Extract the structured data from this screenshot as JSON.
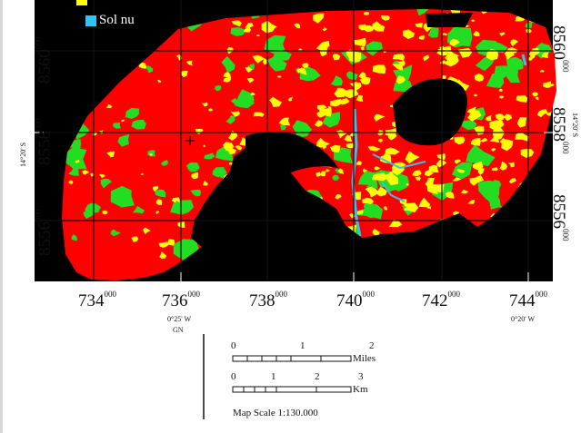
{
  "legend": {
    "items": [
      {
        "label": "Sol nu",
        "color": "#33c3f0"
      }
    ],
    "partial_swatch_color": "#ffff00"
  },
  "classes": {
    "vegetation_dense_color": "#ff0000",
    "vegetation_sparse_color": "#22dd22",
    "vegetation_other_color": "#ffff00",
    "bare_soil_color": "#33c3f0",
    "background_color": "#000000"
  },
  "left_labels": [
    {
      "main": "8560",
      "sup": "000"
    },
    {
      "main": "8558",
      "sup": "000"
    },
    {
      "main": "8556",
      "sup": "000"
    }
  ],
  "left_lat": "14°20' S",
  "right_labels": [
    {
      "main": "8560",
      "sup": "000"
    },
    {
      "main": "8558",
      "sup": "000"
    },
    {
      "main": "8556",
      "sup": "000"
    }
  ],
  "right_lat": "14°20' S",
  "bottom_labels": [
    {
      "main": "734",
      "sup": "000"
    },
    {
      "main": "736",
      "sup": "000"
    },
    {
      "main": "738",
      "sup": "000"
    },
    {
      "main": "740",
      "sup": "000"
    },
    {
      "main": "742",
      "sup": "000"
    },
    {
      "main": "744",
      "sup": "000"
    }
  ],
  "bottom_lon_left": "0°25' W",
  "bottom_datum": "GN",
  "bottom_lon_right": "0°20' W",
  "scale_bar": {
    "miles_ticks": [
      "0",
      "1",
      "2"
    ],
    "miles_unit": "Miles",
    "km_ticks": [
      "0",
      "1",
      "2",
      "3"
    ],
    "km_unit": "Km",
    "caption": "Map Scale 1:130.000"
  }
}
